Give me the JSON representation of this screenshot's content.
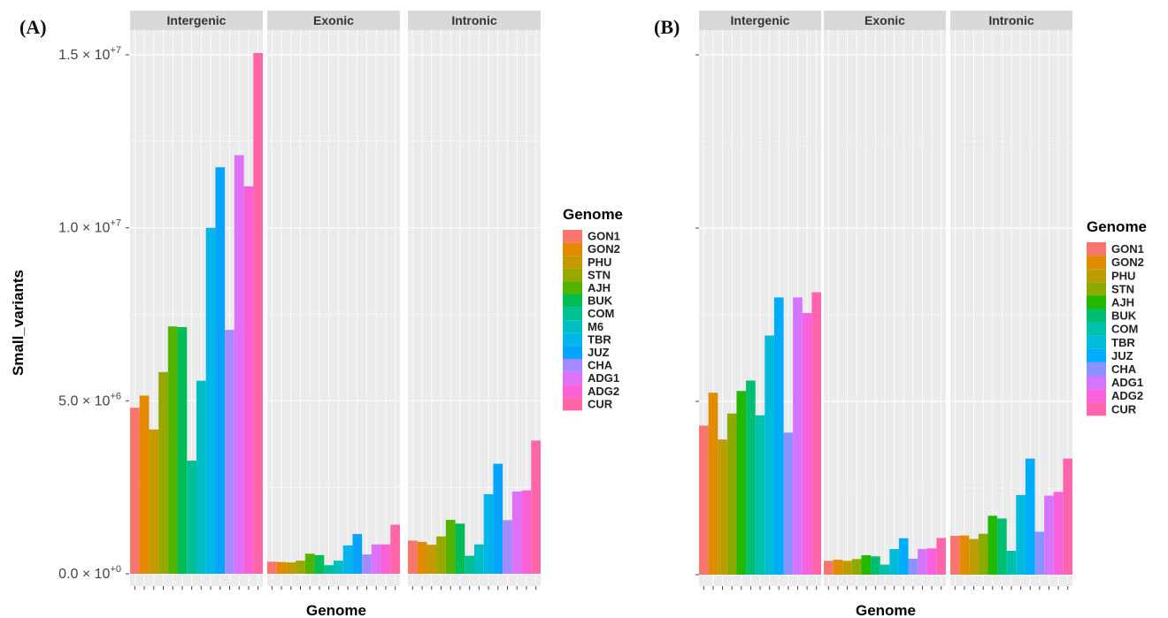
{
  "figure": {
    "panel_labels": [
      "(A)",
      "(B)"
    ]
  },
  "chart_data": [
    {
      "type": "bar",
      "panel": "(A)",
      "facets": [
        "Intergenic",
        "Exonic",
        "Intronic"
      ],
      "xlabel": "Genome",
      "ylabel": "Small_variants",
      "ylim": [
        0,
        15300000
      ],
      "y_tick_values": [
        0,
        5000000,
        10000000,
        15000000
      ],
      "y_tick_labels": [
        {
          "mant": "0.0",
          "exp": "+0"
        },
        {
          "mant": "5.0",
          "exp": "+6"
        },
        {
          "mant": "1.0",
          "exp": "+7"
        },
        {
          "mant": "1.5",
          "exp": "+7"
        }
      ],
      "grid": true,
      "legend": {
        "title": "Genome",
        "placement": "right",
        "entries": [
          {
            "name": "GON1",
            "color": "#F8766D"
          },
          {
            "name": "GON2",
            "color": "#E38900"
          },
          {
            "name": "PHU",
            "color": "#C49A00"
          },
          {
            "name": "STN",
            "color": "#99A800"
          },
          {
            "name": "AJH",
            "color": "#53B400"
          },
          {
            "name": "BUK",
            "color": "#00BC56"
          },
          {
            "name": "COM",
            "color": "#00C094"
          },
          {
            "name": "M6",
            "color": "#00BFC4"
          },
          {
            "name": "TBR",
            "color": "#00B6EB"
          },
          {
            "name": "JUZ",
            "color": "#06A4FF"
          },
          {
            "name": "CHA",
            "color": "#A58AFF"
          },
          {
            "name": "ADG1",
            "color": "#DF70F8"
          },
          {
            "name": "ADG2",
            "color": "#FB61D7"
          },
          {
            "name": "CUR",
            "color": "#FF66A8"
          }
        ]
      },
      "categories": [
        "GON1",
        "GON2",
        "PHU",
        "STN",
        "AJH",
        "BUK",
        "COM",
        "M6",
        "TBR",
        "JUZ",
        "CHA",
        "ADG1",
        "ADG2",
        "CUR"
      ],
      "series": [
        {
          "name": "Intergenic",
          "values": [
            4800000,
            5150000,
            4170000,
            5830000,
            7150000,
            7130000,
            3270000,
            5580000,
            10000000,
            11750000,
            7050000,
            12100000,
            11200000,
            15050000
          ]
        },
        {
          "name": "Exonic",
          "values": [
            350000,
            340000,
            330000,
            380000,
            580000,
            540000,
            250000,
            380000,
            820000,
            1150000,
            560000,
            850000,
            850000,
            1420000
          ]
        },
        {
          "name": "Intronic",
          "values": [
            960000,
            920000,
            840000,
            1080000,
            1560000,
            1450000,
            520000,
            850000,
            2300000,
            3180000,
            1550000,
            2380000,
            2410000,
            3850000
          ]
        }
      ]
    },
    {
      "type": "bar",
      "panel": "(B)",
      "facets": [
        "Intergenic",
        "Exonic",
        "Intronic"
      ],
      "xlabel": "Genome",
      "ylabel": "",
      "ylim": [
        0,
        15300000
      ],
      "y_tick_values": [
        0,
        5000000,
        10000000,
        15000000
      ],
      "grid": true,
      "legend": {
        "title": "Genome",
        "placement": "right",
        "entries": [
          {
            "name": "GON1",
            "color": "#F8766D"
          },
          {
            "name": "GON2",
            "color": "#E08B00"
          },
          {
            "name": "PHU",
            "color": "#BE9C00"
          },
          {
            "name": "STN",
            "color": "#8CAB00"
          },
          {
            "name": "AJH",
            "color": "#24B700"
          },
          {
            "name": "BUK",
            "color": "#00BE70"
          },
          {
            "name": "COM",
            "color": "#00C1AB"
          },
          {
            "name": "TBR",
            "color": "#00BBDA"
          },
          {
            "name": "JUZ",
            "color": "#00ACFC"
          },
          {
            "name": "CHA",
            "color": "#8B93FF"
          },
          {
            "name": "ADG1",
            "color": "#D575FE"
          },
          {
            "name": "ADG2",
            "color": "#F962DD"
          },
          {
            "name": "CUR",
            "color": "#FF65AC"
          }
        ]
      },
      "categories": [
        "GON1",
        "GON2",
        "PHU",
        "STN",
        "AJH",
        "BUK",
        "COM",
        "TBR",
        "JUZ",
        "CHA",
        "ADG1",
        "ADG2",
        "CUR"
      ],
      "series": [
        {
          "name": "Intergenic",
          "values": [
            4300000,
            5250000,
            3900000,
            4650000,
            5300000,
            5600000,
            4600000,
            6900000,
            8000000,
            4100000,
            8000000,
            7550000,
            8150000
          ]
        },
        {
          "name": "Exonic",
          "values": [
            400000,
            430000,
            400000,
            450000,
            560000,
            530000,
            290000,
            740000,
            1050000,
            460000,
            740000,
            760000,
            1060000
          ]
        },
        {
          "name": "Intronic",
          "values": [
            1120000,
            1130000,
            1030000,
            1180000,
            1700000,
            1620000,
            690000,
            2300000,
            3350000,
            1240000,
            2280000,
            2390000,
            3350000
          ]
        }
      ]
    }
  ]
}
